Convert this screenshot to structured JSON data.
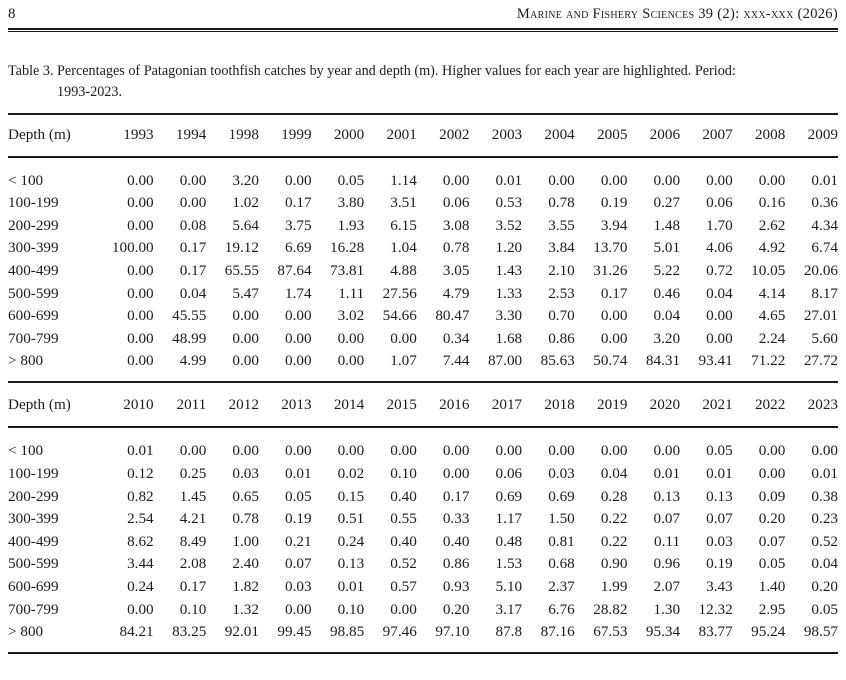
{
  "header": {
    "page_number": "8",
    "journal_title": "Marine and Fishery Sciences 39 (2): xxx-xxx (2026)"
  },
  "caption": {
    "line1": "Table 3. Percentages of Patagonian toothfish catches by year and depth (m). Higher values for each year are highlighted. Period:",
    "line2": "1993-2023."
  },
  "tables": [
    {
      "header": [
        "Depth (m)",
        "1993",
        "1994",
        "1998",
        "1999",
        "2000",
        "2001",
        "2002",
        "2003",
        "2004",
        "2005",
        "2006",
        "2007",
        "2008",
        "2009"
      ],
      "rows": [
        [
          "< 100",
          "0.00",
          "0.00",
          "3.20",
          "0.00",
          "0.05",
          "1.14",
          "0.00",
          "0.01",
          "0.00",
          "0.00",
          "0.00",
          "0.00",
          "0.00",
          "0.01"
        ],
        [
          "100-199",
          "0.00",
          "0.00",
          "1.02",
          "0.17",
          "3.80",
          "3.51",
          "0.06",
          "0.53",
          "0.78",
          "0.19",
          "0.27",
          "0.06",
          "0.16",
          "0.36"
        ],
        [
          "200-299",
          "0.00",
          "0.08",
          "5.64",
          "3.75",
          "1.93",
          "6.15",
          "3.08",
          "3.52",
          "3.55",
          "3.94",
          "1.48",
          "1.70",
          "2.62",
          "4.34"
        ],
        [
          "300-399",
          "100.00",
          "0.17",
          "19.12",
          "6.69",
          "16.28",
          "1.04",
          "0.78",
          "1.20",
          "3.84",
          "13.70",
          "5.01",
          "4.06",
          "4.92",
          "6.74"
        ],
        [
          "400-499",
          "0.00",
          "0.17",
          "65.55",
          "87.64",
          "73.81",
          "4.88",
          "3.05",
          "1.43",
          "2.10",
          "31.26",
          "5.22",
          "0.72",
          "10.05",
          "20.06"
        ],
        [
          "500-599",
          "0.00",
          "0.04",
          "5.47",
          "1.74",
          "1.11",
          "27.56",
          "4.79",
          "1.33",
          "2.53",
          "0.17",
          "0.46",
          "0.04",
          "4.14",
          "8.17"
        ],
        [
          "600-699",
          "0.00",
          "45.55",
          "0.00",
          "0.00",
          "3.02",
          "54.66",
          "80.47",
          "3.30",
          "0.70",
          "0.00",
          "0.04",
          "0.00",
          "4.65",
          "27.01"
        ],
        [
          "700-799",
          "0.00",
          "48.99",
          "0.00",
          "0.00",
          "0.00",
          "0.00",
          "0.34",
          "1.68",
          "0.86",
          "0.00",
          "3.20",
          "0.00",
          "2.24",
          "5.60"
        ],
        [
          "> 800",
          "0.00",
          "4.99",
          "0.00",
          "0.00",
          "0.00",
          "1.07",
          "7.44",
          "87.00",
          "85.63",
          "50.74",
          "84.31",
          "93.41",
          "71.22",
          "27.72"
        ]
      ]
    },
    {
      "header": [
        "Depth (m)",
        "2010",
        "2011",
        "2012",
        "2013",
        "2014",
        "2015",
        "2016",
        "2017",
        "2018",
        "2019",
        "2020",
        "2021",
        "2022",
        "2023"
      ],
      "rows": [
        [
          "< 100",
          "0.01",
          "0.00",
          "0.00",
          "0.00",
          "0.00",
          "0.00",
          "0.00",
          "0.00",
          "0.00",
          "0.00",
          "0.00",
          "0.05",
          "0.00",
          "0.00"
        ],
        [
          "100-199",
          "0.12",
          "0.25",
          "0.03",
          "0.01",
          "0.02",
          "0.10",
          "0.00",
          "0.06",
          "0.03",
          "0.04",
          "0.01",
          "0.01",
          "0.00",
          "0.01"
        ],
        [
          "200-299",
          "0.82",
          "1.45",
          "0.65",
          "0.05",
          "0.15",
          "0.40",
          "0.17",
          "0.69",
          "0.69",
          "0.28",
          "0.13",
          "0.13",
          "0.09",
          "0.38"
        ],
        [
          "300-399",
          "2.54",
          "4.21",
          "0.78",
          "0.19",
          "0.51",
          "0.55",
          "0.33",
          "1.17",
          "1.50",
          "0.22",
          "0.07",
          "0.07",
          "0.20",
          "0.23"
        ],
        [
          "400-499",
          "8.62",
          "8.49",
          "1.00",
          "0.21",
          "0.24",
          "0.40",
          "0.40",
          "0.48",
          "0.81",
          "0.22",
          "0.11",
          "0.03",
          "0.07",
          "0.52"
        ],
        [
          "500-599",
          "3.44",
          "2.08",
          "2.40",
          "0.07",
          "0.13",
          "0.52",
          "0.86",
          "1.53",
          "0.68",
          "0.90",
          "0.96",
          "0.19",
          "0.05",
          "0.04"
        ],
        [
          "600-699",
          "0.24",
          "0.17",
          "1.82",
          "0.03",
          "0.01",
          "0.57",
          "0.93",
          "5.10",
          "2.37",
          "1.99",
          "2.07",
          "3.43",
          "1.40",
          "0.20"
        ],
        [
          "700-799",
          "0.00",
          "0.10",
          "1.32",
          "0.00",
          "0.10",
          "0.00",
          "0.20",
          "3.17",
          "6.76",
          "28.82",
          "1.30",
          "12.32",
          "2.95",
          "0.05"
        ],
        [
          "> 800",
          "84.21",
          "83.25",
          "92.01",
          "99.45",
          "98.85",
          "97.46",
          "97.10",
          "87.8",
          "87.16",
          "67.53",
          "95.34",
          "83.77",
          "95.24",
          "98.57"
        ]
      ]
    }
  ]
}
